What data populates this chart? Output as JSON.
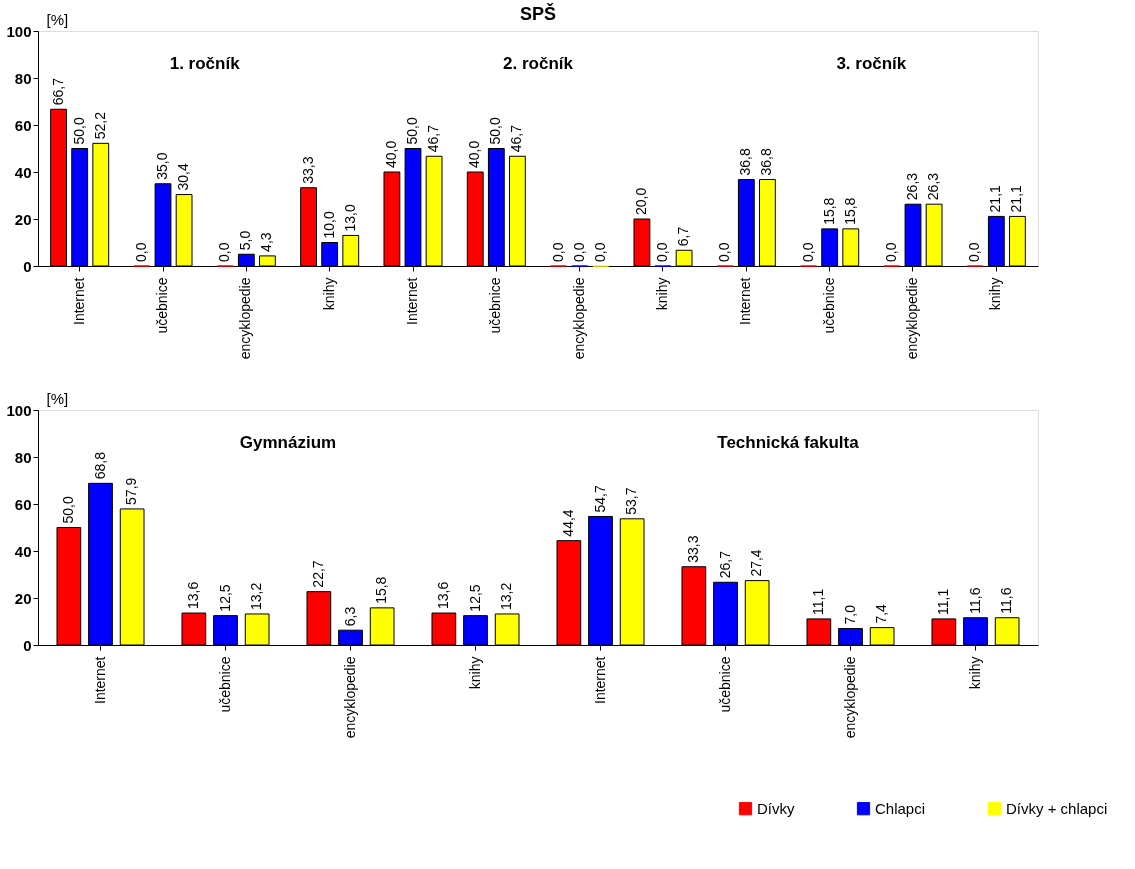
{
  "chart_data": [
    {
      "type": "bar",
      "title": "SPŠ",
      "ylabel": "[%]",
      "annotations": [
        "1. ročník",
        "2. ročník",
        "3. ročník"
      ],
      "categories": [
        "Internet",
        "učebnice",
        "encyklopedie",
        "knihy",
        "Internet",
        "učebnice",
        "encyklopedie",
        "knihy",
        "Internet",
        "učebnice",
        "encyklopedie",
        "knihy"
      ],
      "series": [
        {
          "name": "Dívky",
          "color": "#ff0000",
          "values": [
            66.7,
            0,
            0,
            33.3,
            40,
            40,
            0,
            20,
            0,
            0,
            0,
            0
          ],
          "value_labels": [
            "66,7",
            "0,0",
            "0,0",
            "33,3",
            "40,0",
            "40,0",
            "0,0",
            "20,0",
            "0,0",
            "0,0",
            "0,0",
            "0,0"
          ]
        },
        {
          "name": "Chlapci",
          "color": "#0000ff",
          "values": [
            50,
            35,
            5,
            10,
            50,
            50,
            0,
            0,
            36.8,
            15.8,
            26.3,
            21.1
          ],
          "value_labels": [
            "50,0",
            "35,0",
            "5,0",
            "10,0",
            "50,0",
            "50,0",
            "0,0",
            "0,0",
            "36,8",
            "15,8",
            "26,3",
            "21,1"
          ]
        },
        {
          "name": "Dívky + chlapci",
          "color": "#ffff00",
          "values": [
            52.2,
            30.4,
            4.3,
            13.0,
            46.7,
            46.7,
            0,
            6.7,
            36.8,
            15.8,
            26.3,
            21.1
          ],
          "value_labels": [
            "52,2",
            "30,4",
            "4,3",
            "13,0",
            "46,7",
            "46,7",
            "0,0",
            "6,7",
            "36,8",
            "15,8",
            "26,3",
            "21,1"
          ]
        }
      ],
      "ylim": [
        0,
        100
      ],
      "yticks": [
        0,
        20,
        40,
        60,
        80,
        100
      ],
      "grid": false,
      "legend": "bottom right"
    },
    {
      "type": "bar",
      "ylabel": "[%]",
      "annotations": [
        "Gymnázium",
        "Technická fakulta"
      ],
      "categories": [
        "Internet",
        "učebnice",
        "encyklopedie",
        "knihy",
        "Internet",
        "učebnice",
        "encyklopedie",
        "knihy"
      ],
      "series": [
        {
          "name": "Dívky",
          "color": "#ff0000",
          "values": [
            50,
            13.6,
            22.7,
            13.6,
            44.4,
            33.3,
            11.1,
            11.1
          ],
          "value_labels": [
            "50,0",
            "13,6",
            "22,7",
            "13,6",
            "44,4",
            "33,3",
            "11,1",
            "11,1"
          ]
        },
        {
          "name": "Chlapci",
          "color": "#0000ff",
          "values": [
            68.8,
            12.5,
            6.3,
            12.5,
            54.7,
            26.7,
            7.0,
            11.6
          ],
          "value_labels": [
            "68,8",
            "12,5",
            "6,3",
            "12,5",
            "54,7",
            "26,7",
            "7,0",
            "11,6"
          ]
        },
        {
          "name": "Dívky + chlapci",
          "color": "#ffff00",
          "values": [
            57.9,
            13.2,
            15.8,
            13.2,
            53.7,
            27.4,
            7.4,
            11.6
          ],
          "value_labels": [
            "57,9",
            "13,2",
            "15,8",
            "13,2",
            "53,7",
            "27,4",
            "7,4",
            "11,6"
          ]
        }
      ],
      "ylim": [
        0,
        100
      ],
      "yticks": [
        0,
        20,
        40,
        60,
        80,
        100
      ],
      "grid": false,
      "legend": "bottom right"
    }
  ]
}
